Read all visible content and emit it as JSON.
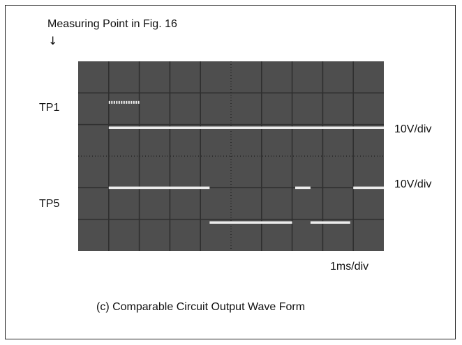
{
  "header": {
    "measuring_point": "Measuring Point in Fig. 16",
    "arrow": "↓"
  },
  "channels": [
    {
      "label": "TP1",
      "scale": "10V/div"
    },
    {
      "label": "TP5",
      "scale": "10V/div"
    }
  ],
  "timebase": "1ms/div",
  "caption": "(c) Comparable Circuit Output Wave Form",
  "colors": {
    "screen": "#4e4e4e",
    "grid": "#2f2f2f",
    "trace": "#ececec"
  },
  "scope_grid": {
    "h_divisions": 10,
    "v_divisions": 6
  },
  "waveforms": {
    "tp1_pulse": {
      "start_div": 1,
      "end_div": 2,
      "level_div": 1.3
    },
    "tp1_baseline": {
      "start_div": 1,
      "end_div": 10,
      "level_div": 2.1
    },
    "tp5_segments": [
      {
        "start_div": 1,
        "end_div": 4.3,
        "level_div": 4.0
      },
      {
        "start_div": 4.3,
        "end_div": 7.0,
        "level_div": 5.1
      },
      {
        "start_div": 7.1,
        "end_div": 7.6,
        "level_div": 4.0
      },
      {
        "start_div": 7.6,
        "end_div": 8.9,
        "level_div": 5.1
      },
      {
        "start_div": 9.0,
        "end_div": 10,
        "level_div": 4.0
      }
    ]
  }
}
